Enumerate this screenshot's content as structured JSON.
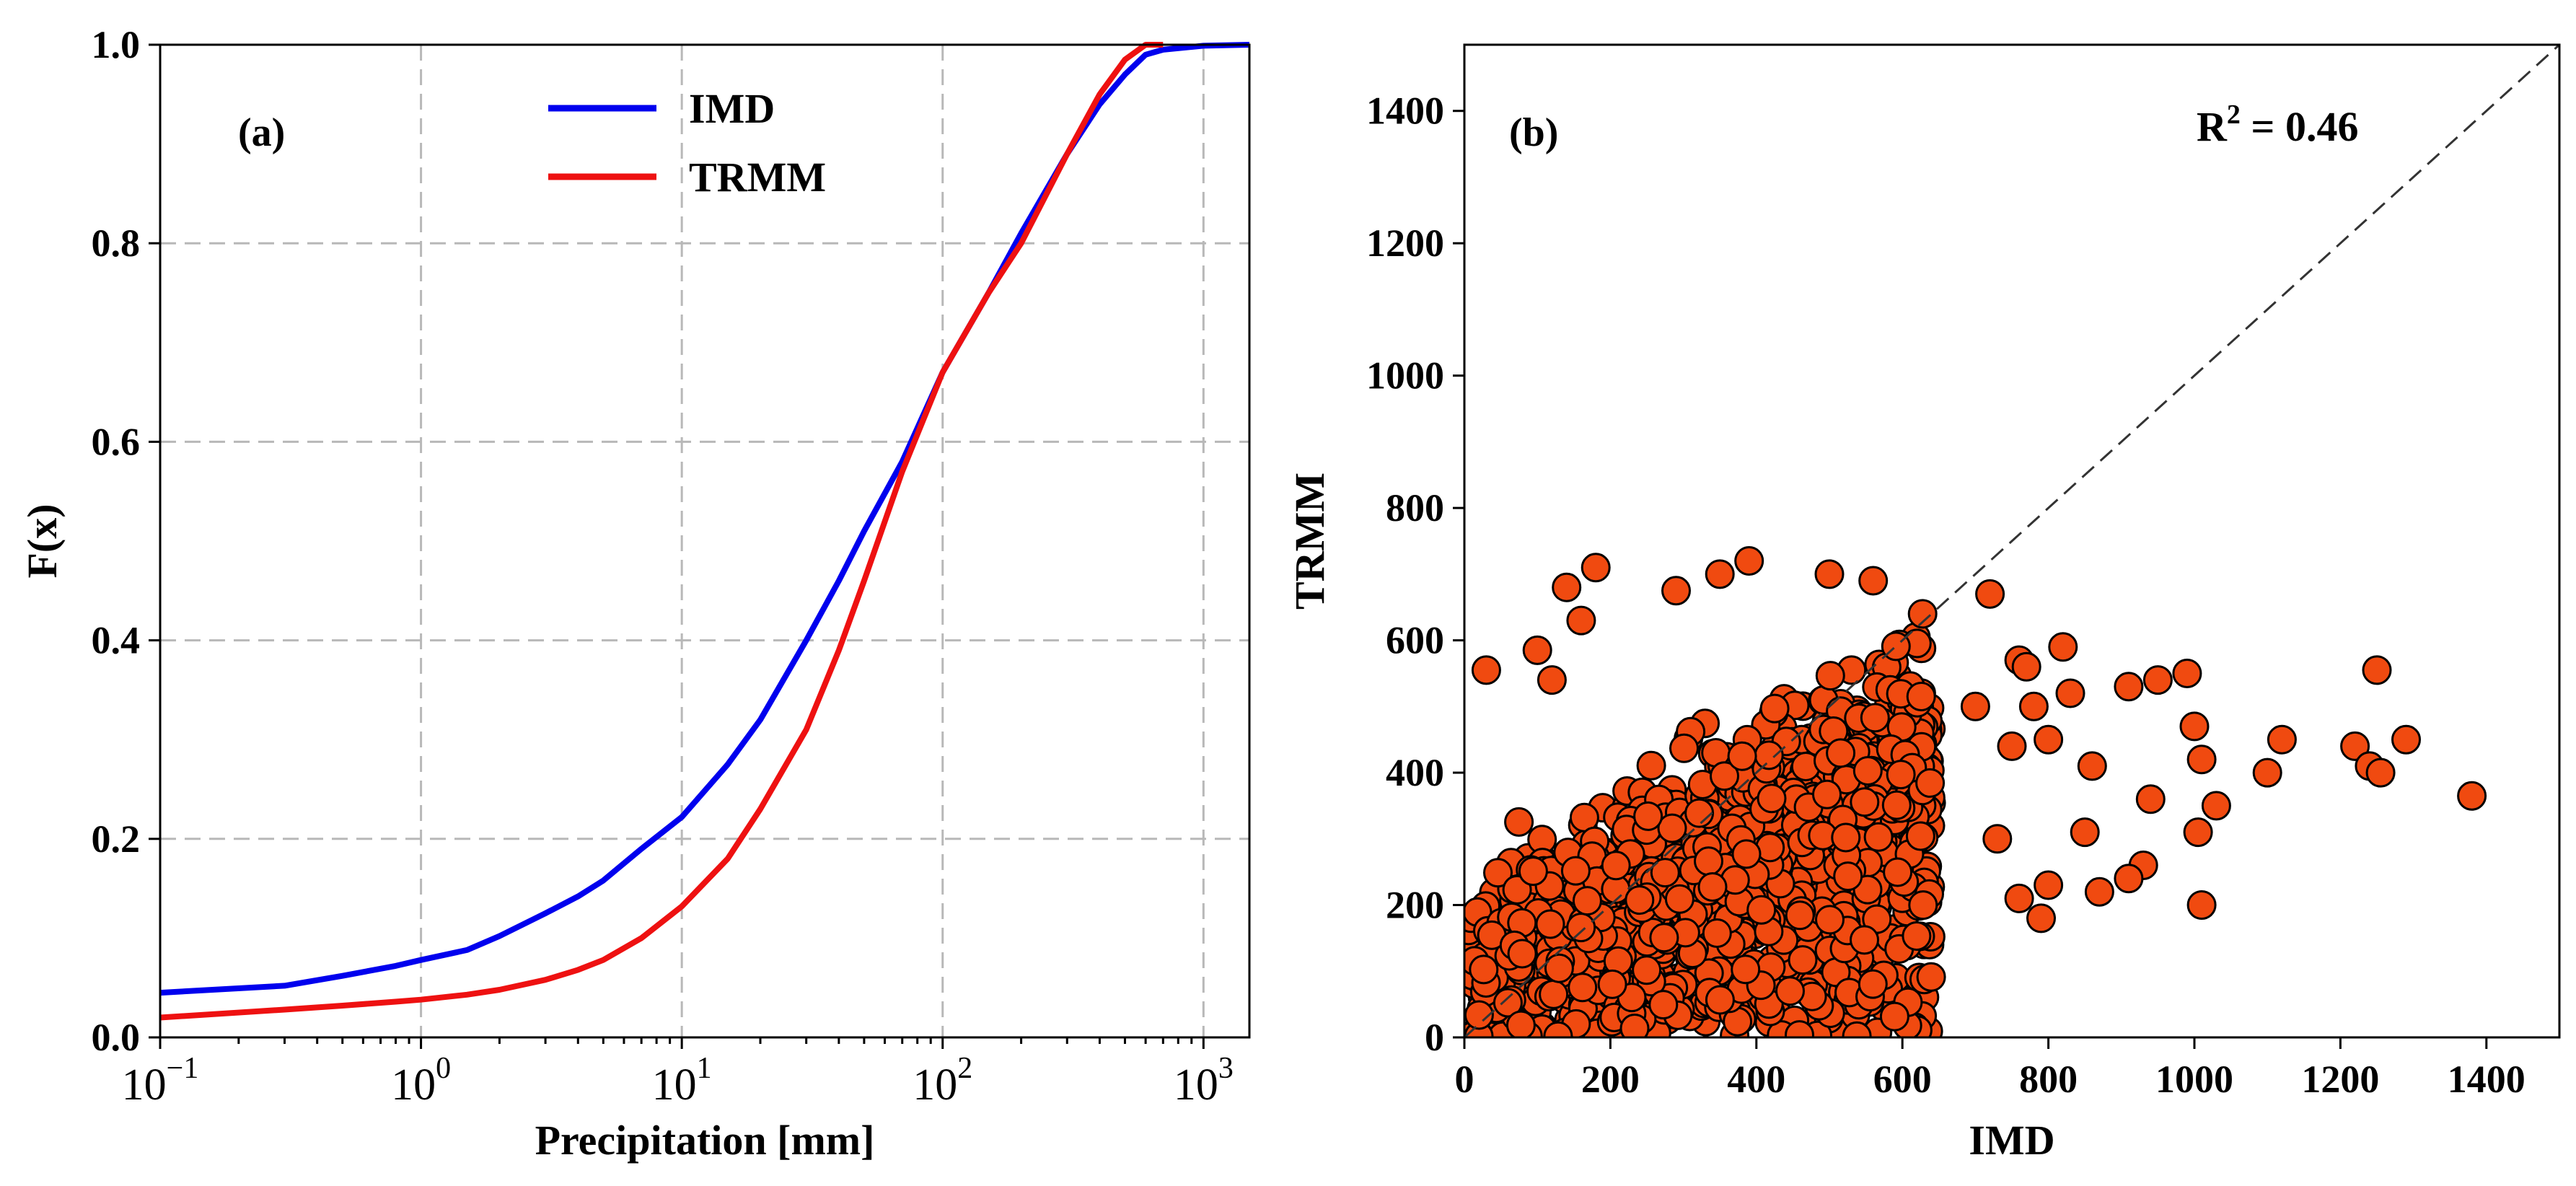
{
  "chart_data": [
    {
      "panel": "(a)",
      "type": "line",
      "xscale": "log",
      "xlim": [
        0.1,
        1500
      ],
      "ylim": [
        0,
        1
      ],
      "xlabel": "Precipitation [mm]",
      "ylabel": "F(x)",
      "xtick_labels": [
        {
          "base": "10",
          "exp": "−1",
          "value": 0.1
        },
        {
          "base": "10",
          "exp": "0",
          "value": 1
        },
        {
          "base": "10",
          "exp": "1",
          "value": 10
        },
        {
          "base": "10",
          "exp": "2",
          "value": 100
        },
        {
          "base": "10",
          "exp": "3",
          "value": 1000
        }
      ],
      "ytick_labels": [
        "0.0",
        "0.2",
        "0.4",
        "0.6",
        "0.8",
        "1.0"
      ],
      "ytick_values": [
        0,
        0.2,
        0.4,
        0.6,
        0.8,
        1.0
      ],
      "grid": true,
      "legend": "top-center",
      "series": [
        {
          "name": "IMD",
          "color": "#0000ee",
          "x": [
            0.1,
            0.3,
            0.5,
            0.8,
            1,
            1.5,
            2,
            3,
            4,
            5,
            7,
            10,
            15,
            20,
            30,
            40,
            50,
            70,
            100,
            150,
            200,
            300,
            400,
            500,
            600,
            700,
            1000,
            1500
          ],
          "y": [
            0.045,
            0.052,
            0.062,
            0.072,
            0.078,
            0.088,
            0.102,
            0.125,
            0.142,
            0.158,
            0.19,
            0.222,
            0.275,
            0.32,
            0.4,
            0.46,
            0.51,
            0.58,
            0.67,
            0.75,
            0.81,
            0.89,
            0.94,
            0.97,
            0.99,
            0.995,
            0.999,
            1.0
          ]
        },
        {
          "name": "TRMM",
          "color": "#ee1111",
          "x": [
            0.1,
            0.3,
            0.5,
            0.8,
            1,
            1.5,
            2,
            3,
            4,
            5,
            7,
            10,
            15,
            20,
            30,
            40,
            50,
            70,
            100,
            150,
            200,
            300,
            400,
            500,
            600,
            700
          ],
          "y": [
            0.02,
            0.028,
            0.032,
            0.036,
            0.038,
            0.043,
            0.048,
            0.058,
            0.068,
            0.078,
            0.1,
            0.132,
            0.18,
            0.23,
            0.31,
            0.39,
            0.46,
            0.57,
            0.67,
            0.75,
            0.8,
            0.89,
            0.95,
            0.985,
            1.0,
            1.0
          ]
        }
      ]
    },
    {
      "panel": "(b)",
      "type": "scatter",
      "xlim": [
        0,
        1500
      ],
      "ylim": [
        0,
        1500
      ],
      "xlabel": "IMD",
      "ylabel": "TRMM",
      "xticks": [
        0,
        200,
        400,
        600,
        800,
        1000,
        1200,
        1400
      ],
      "yticks": [
        0,
        200,
        400,
        600,
        800,
        1000,
        1200,
        1400
      ],
      "xtick_labels": [
        "0",
        "200",
        "400",
        "600",
        "800",
        "1000",
        "1200",
        "1400"
      ],
      "ytick_labels": [
        "0",
        "200",
        "400",
        "600",
        "800",
        "1000",
        "1200",
        "1400"
      ],
      "annotation": {
        "base": "R",
        "exp": "2",
        "rest": " = 0.46"
      },
      "reference_line": "1:1 dashed",
      "marker_color": "#f04a10",
      "marker_edge": "#000000",
      "point_count_estimate": 1500,
      "outliers": [
        [
          30,
          555
        ],
        [
          100,
          585
        ],
        [
          120,
          540
        ],
        [
          140,
          680
        ],
        [
          160,
          630
        ],
        [
          180,
          710
        ],
        [
          290,
          675
        ],
        [
          350,
          700
        ],
        [
          390,
          720
        ],
        [
          500,
          700
        ],
        [
          560,
          690
        ],
        [
          720,
          670
        ],
        [
          700,
          500
        ],
        [
          760,
          570
        ],
        [
          820,
          590
        ],
        [
          780,
          500
        ],
        [
          800,
          450
        ],
        [
          830,
          520
        ],
        [
          850,
          310
        ],
        [
          870,
          220
        ],
        [
          910,
          530
        ],
        [
          940,
          360
        ],
        [
          950,
          540
        ],
        [
          990,
          550
        ],
        [
          1000,
          470
        ],
        [
          1010,
          420
        ],
        [
          1005,
          310
        ],
        [
          1010,
          200
        ],
        [
          1030,
          350
        ],
        [
          1100,
          400
        ],
        [
          1120,
          450
        ],
        [
          1220,
          440
        ],
        [
          1240,
          410
        ],
        [
          1250,
          555
        ],
        [
          1255,
          400
        ],
        [
          1290,
          450
        ],
        [
          1380,
          365
        ],
        [
          930,
          260
        ],
        [
          910,
          240
        ],
        [
          860,
          410
        ],
        [
          730,
          300
        ],
        [
          760,
          210
        ],
        [
          790,
          180
        ],
        [
          800,
          230
        ],
        [
          750,
          440
        ],
        [
          770,
          560
        ]
      ]
    }
  ],
  "legend": {
    "entries": [
      {
        "label": "IMD",
        "color": "#0000ee"
      },
      {
        "label": "TRMM",
        "color": "#ee1111"
      }
    ]
  }
}
